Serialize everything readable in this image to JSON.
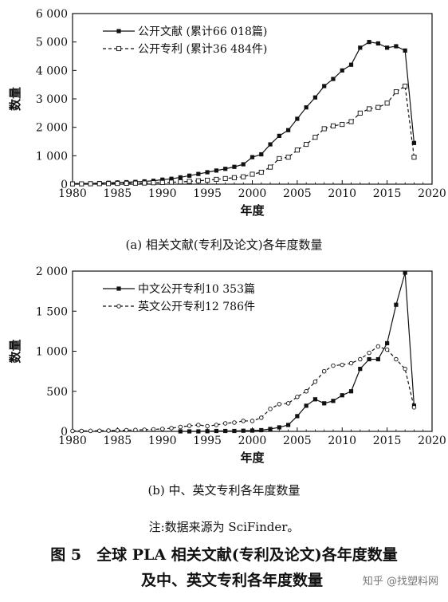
{
  "chart_data": [
    {
      "type": "line",
      "subcaption": "(a) 相关文献(专利及论文)各年度数量",
      "xlabel": "年度",
      "ylabel": "数量",
      "xlim": [
        1980,
        2020
      ],
      "ylim": [
        0,
        6000
      ],
      "xticks": [
        "1980",
        "1985",
        "1990",
        "1995",
        "2000",
        "2005",
        "2010",
        "2015",
        "2020"
      ],
      "yticks": [
        "0",
        "1 000",
        "2 000",
        "3 000",
        "4 000",
        "5 000",
        "6 000"
      ],
      "legend_position": "top-left",
      "x": [
        1980,
        1981,
        1982,
        1983,
        1984,
        1985,
        1986,
        1987,
        1988,
        1989,
        1990,
        1991,
        1992,
        1993,
        1994,
        1995,
        1996,
        1997,
        1998,
        1999,
        2000,
        2001,
        2002,
        2003,
        2004,
        2005,
        2006,
        2007,
        2008,
        2009,
        2010,
        2011,
        2012,
        2013,
        2014,
        2015,
        2016,
        2017,
        2018
      ],
      "series": [
        {
          "name": "公开文献 (累计66 018篇)",
          "marker": "filled-square",
          "line": "solid",
          "values": [
            20,
            25,
            30,
            40,
            50,
            60,
            70,
            80,
            100,
            120,
            160,
            190,
            240,
            300,
            360,
            420,
            480,
            540,
            610,
            700,
            950,
            1050,
            1400,
            1700,
            1900,
            2300,
            2700,
            3050,
            3450,
            3700,
            4000,
            4200,
            4800,
            5000,
            4950,
            4800,
            4850,
            4700,
            1450
          ]
        },
        {
          "name": "公开专利 (累计36 484件)",
          "marker": "open-square",
          "line": "dashed",
          "values": [
            10,
            12,
            15,
            18,
            20,
            25,
            30,
            35,
            40,
            50,
            60,
            70,
            80,
            100,
            120,
            140,
            170,
            200,
            230,
            260,
            350,
            420,
            600,
            900,
            950,
            1200,
            1400,
            1650,
            1950,
            2050,
            2100,
            2200,
            2500,
            2650,
            2700,
            2850,
            3250,
            3450,
            950
          ]
        }
      ]
    },
    {
      "type": "line",
      "subcaption": "(b) 中、英文专利各年度数量",
      "xlabel": "年度",
      "ylabel": "数量",
      "xlim": [
        1980,
        2020
      ],
      "ylim": [
        0,
        2000
      ],
      "xticks": [
        "1980",
        "1985",
        "1990",
        "1995",
        "2000",
        "2005",
        "2010",
        "2015",
        "2020"
      ],
      "yticks": [
        "0",
        "500",
        "1 000",
        "1 500",
        "2 000"
      ],
      "legend_position": "top-left",
      "series": [
        {
          "name": "中文公开专利10 353篇",
          "marker": "filled-square",
          "line": "solid",
          "x": [
            1992,
            1993,
            1994,
            1995,
            1996,
            1997,
            1998,
            1999,
            2000,
            2001,
            2002,
            2003,
            2004,
            2005,
            2006,
            2007,
            2008,
            2009,
            2010,
            2011,
            2012,
            2013,
            2014,
            2015,
            2016,
            2017,
            2018
          ],
          "values": [
            0,
            0,
            0,
            2,
            5,
            5,
            5,
            8,
            10,
            15,
            30,
            50,
            80,
            190,
            320,
            400,
            350,
            380,
            450,
            500,
            780,
            900,
            900,
            1100,
            1580,
            1980,
            320
          ]
        },
        {
          "name": "英文公开专利12 786件",
          "marker": "open-circle",
          "line": "dashed",
          "x": [
            1980,
            1981,
            1982,
            1983,
            1984,
            1985,
            1986,
            1987,
            1988,
            1989,
            1990,
            1991,
            1992,
            1993,
            1994,
            1995,
            1996,
            1997,
            1998,
            1999,
            2000,
            2001,
            2002,
            2003,
            2004,
            2005,
            2006,
            2007,
            2008,
            2009,
            2010,
            2011,
            2012,
            2013,
            2014,
            2015,
            2016,
            2017,
            2018
          ],
          "values": [
            5,
            5,
            6,
            8,
            10,
            12,
            15,
            18,
            20,
            25,
            30,
            40,
            55,
            70,
            80,
            65,
            80,
            100,
            110,
            130,
            130,
            170,
            280,
            340,
            350,
            430,
            500,
            620,
            750,
            820,
            830,
            850,
            900,
            980,
            1060,
            1020,
            900,
            780,
            300
          ]
        }
      ]
    }
  ],
  "note": "注:数据来源为 SciFinder。",
  "figure_title_line1": "图 5　全球 PLA 相关文献(专利及论文)各年度数量",
  "figure_title_line2": "及中、英文专利各年度数量",
  "watermark": "知乎 @找塑料网"
}
